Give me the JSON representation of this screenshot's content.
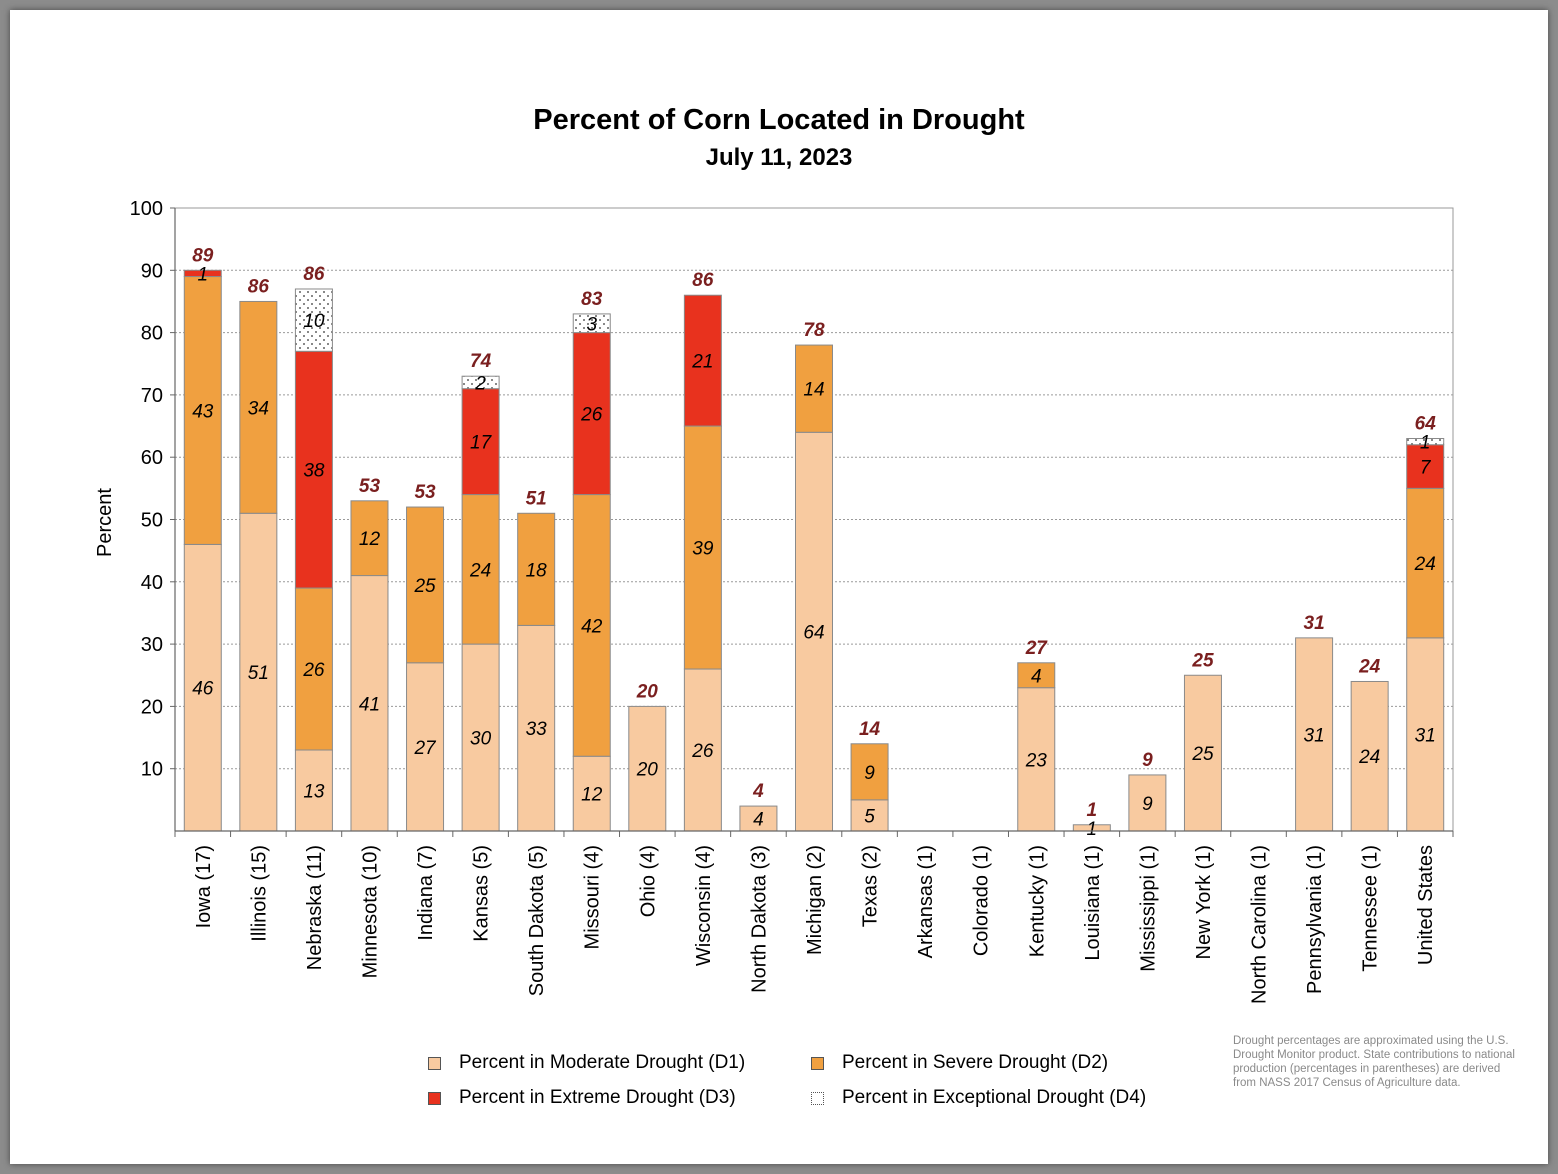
{
  "chart_data": {
    "type": "bar",
    "stacked": true,
    "title": "Percent of Corn Located in Drought",
    "subtitle": "July 11, 2023",
    "ylabel": "Percent",
    "xlabel": "",
    "ylim": [
      0,
      100
    ],
    "yticks": [
      10,
      20,
      30,
      40,
      50,
      60,
      70,
      80,
      90,
      100
    ],
    "grid": true,
    "categories": [
      "Iowa (17)",
      "Illinois (15)",
      "Nebraska (11)",
      "Minnesota (10)",
      "Indiana (7)",
      "Kansas (5)",
      "South Dakota (5)",
      "Missouri (4)",
      "Ohio (4)",
      "Wisconsin (4)",
      "North Dakota (3)",
      "Michigan (2)",
      "Texas (2)",
      "Arkansas (1)",
      "Colorado (1)",
      "Kentucky (1)",
      "Louisiana (1)",
      "Mississippi (1)",
      "New York (1)",
      "North Carolina (1)",
      "Pennsylvania (1)",
      "Tennessee (1)",
      "United States"
    ],
    "series": [
      {
        "name": "Percent in Moderate Drought (D1)",
        "color": "#f8caa0",
        "values": [
          46,
          51,
          13,
          41,
          27,
          30,
          33,
          12,
          20,
          26,
          4,
          64,
          5,
          0,
          0,
          23,
          1,
          9,
          25,
          0,
          31,
          24,
          31
        ]
      },
      {
        "name": "Percent in Severe Drought (D2)",
        "color": "#f0a040",
        "values": [
          43,
          34,
          26,
          12,
          25,
          24,
          18,
          42,
          0,
          39,
          0,
          14,
          9,
          0,
          0,
          4,
          0,
          0,
          0,
          0,
          0,
          0,
          24
        ]
      },
      {
        "name": "Percent in Extreme Drought (D3)",
        "color": "#e8321e",
        "values": [
          1,
          0,
          38,
          0,
          0,
          17,
          0,
          26,
          0,
          21,
          0,
          0,
          0,
          0,
          0,
          0,
          0,
          0,
          0,
          0,
          0,
          0,
          7
        ]
      },
      {
        "name": "Percent in Exceptional Drought (D4)",
        "color": "#ffffff",
        "values": [
          0,
          0,
          10,
          0,
          0,
          2,
          0,
          3,
          0,
          0,
          0,
          0,
          0,
          0,
          0,
          0,
          0,
          0,
          0,
          0,
          0,
          0,
          1
        ]
      }
    ],
    "totals": [
      89,
      86,
      86,
      53,
      53,
      74,
      51,
      83,
      20,
      86,
      4,
      78,
      14,
      0,
      0,
      27,
      1,
      9,
      25,
      0,
      31,
      24,
      64
    ],
    "total_label_color": "#7a1f1f",
    "legend_position": "bottom"
  },
  "note": "Drought percentages are approximated using the U.S. Drought Monitor product. State contributions to national production (percentages in parentheses) are derived from NASS 2017 Census of Agriculture data."
}
